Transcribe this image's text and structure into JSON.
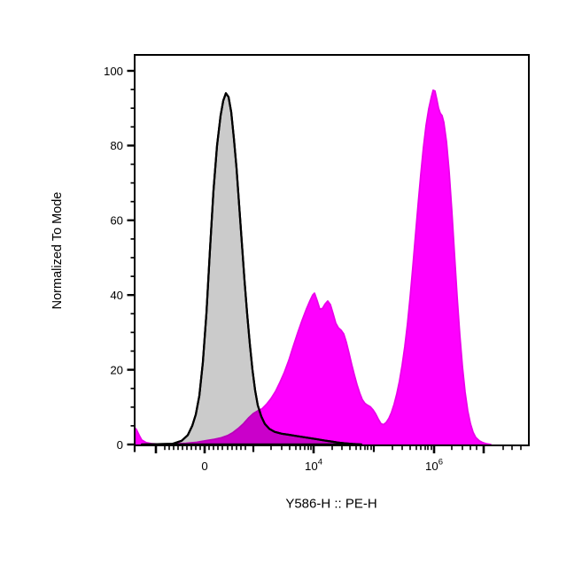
{
  "figure": {
    "background": "#ffffff"
  },
  "chart_data": {
    "type": "area",
    "subtype": "flow-cytometry-histogram-overlay",
    "title": "",
    "xlabel": "Y586-H :: PE-H",
    "ylabel": "Normalized To Mode",
    "legend": "none",
    "grid": false,
    "y_axis": {
      "min": 0,
      "max": 100,
      "major_tick_values": [
        0,
        20,
        40,
        60,
        80,
        100
      ],
      "minor_tick_step": 5
    },
    "x_axis": {
      "scale": "biexponential",
      "tick_labels": [
        {
          "f": 0.1775,
          "text": "0"
        },
        {
          "f": 0.4539,
          "text": "10",
          "sup": "4"
        },
        {
          "f": 0.7596,
          "text": "10",
          "sup": "6"
        }
      ],
      "ticks": [
        {
          "f": 0.0,
          "s": "m"
        },
        {
          "f": 0.0539,
          "s": "l"
        },
        {
          "f": 0.0764,
          "s": "s"
        },
        {
          "f": 0.0876,
          "s": "s"
        },
        {
          "f": 0.0989,
          "s": "s"
        },
        {
          "f": 0.1101,
          "s": "s"
        },
        {
          "f": 0.1213,
          "s": "s"
        },
        {
          "f": 0.1326,
          "s": "s"
        },
        {
          "f": 0.1438,
          "s": "s"
        },
        {
          "f": 0.1551,
          "s": "s"
        },
        {
          "f": 0.1663,
          "s": "s"
        },
        {
          "f": 0.1775,
          "s": "l"
        },
        {
          "f": 0.1888,
          "s": "s"
        },
        {
          "f": 0.2,
          "s": "s"
        },
        {
          "f": 0.2112,
          "s": "s"
        },
        {
          "f": 0.2225,
          "s": "s"
        },
        {
          "f": 0.236,
          "s": "s"
        },
        {
          "f": 0.2472,
          "s": "s"
        },
        {
          "f": 0.2584,
          "s": "s"
        },
        {
          "f": 0.2697,
          "s": "s"
        },
        {
          "f": 0.2809,
          "s": "s"
        },
        {
          "f": 0.3011,
          "s": "m"
        },
        {
          "f": 0.3461,
          "s": "s"
        },
        {
          "f": 0.373,
          "s": "s"
        },
        {
          "f": 0.3933,
          "s": "s"
        },
        {
          "f": 0.409,
          "s": "s"
        },
        {
          "f": 0.4202,
          "s": "s"
        },
        {
          "f": 0.4315,
          "s": "s"
        },
        {
          "f": 0.4404,
          "s": "s"
        },
        {
          "f": 0.4472,
          "s": "s"
        },
        {
          "f": 0.4539,
          "s": "l"
        },
        {
          "f": 0.5011,
          "s": "s"
        },
        {
          "f": 0.5258,
          "s": "s"
        },
        {
          "f": 0.5461,
          "s": "s"
        },
        {
          "f": 0.5618,
          "s": "s"
        },
        {
          "f": 0.573,
          "s": "s"
        },
        {
          "f": 0.5843,
          "s": "s"
        },
        {
          "f": 0.591,
          "s": "s"
        },
        {
          "f": 0.6,
          "s": "s"
        },
        {
          "f": 0.6067,
          "s": "m"
        },
        {
          "f": 0.6539,
          "s": "s"
        },
        {
          "f": 0.6787,
          "s": "s"
        },
        {
          "f": 0.6989,
          "s": "s"
        },
        {
          "f": 0.7146,
          "s": "s"
        },
        {
          "f": 0.7258,
          "s": "s"
        },
        {
          "f": 0.7371,
          "s": "s"
        },
        {
          "f": 0.7438,
          "s": "s"
        },
        {
          "f": 0.7528,
          "s": "s"
        },
        {
          "f": 0.7596,
          "s": "l"
        },
        {
          "f": 0.8045,
          "s": "s"
        },
        {
          "f": 0.8315,
          "s": "s"
        },
        {
          "f": 0.8517,
          "s": "s"
        },
        {
          "f": 0.8674,
          "s": "s"
        },
        {
          "f": 0.8854,
          "s": "l"
        },
        {
          "f": 0.9348,
          "s": "s"
        },
        {
          "f": 0.9573,
          "s": "s"
        },
        {
          "f": 0.9798,
          "s": "s"
        }
      ]
    },
    "series": [
      {
        "name": "gray-control-histogram",
        "fill": "#cbcbcb",
        "stroke": "#000000",
        "stroke_width": 2.2,
        "blend": "normal",
        "points": [
          [
            0.018,
            0
          ],
          [
            0.0966,
            0.2
          ],
          [
            0.1191,
            1
          ],
          [
            0.1348,
            2.5
          ],
          [
            0.1461,
            5
          ],
          [
            0.1551,
            8
          ],
          [
            0.164,
            13
          ],
          [
            0.173,
            22
          ],
          [
            0.182,
            35
          ],
          [
            0.191,
            52
          ],
          [
            0.2,
            68
          ],
          [
            0.209,
            80
          ],
          [
            0.218,
            88
          ],
          [
            0.2247,
            92
          ],
          [
            0.2315,
            94
          ],
          [
            0.2382,
            93
          ],
          [
            0.2449,
            89
          ],
          [
            0.2517,
            82
          ],
          [
            0.2584,
            74
          ],
          [
            0.2652,
            64
          ],
          [
            0.2719,
            54
          ],
          [
            0.2787,
            44
          ],
          [
            0.2854,
            35
          ],
          [
            0.2921,
            27
          ],
          [
            0.2989,
            20
          ],
          [
            0.3056,
            14.5
          ],
          [
            0.3124,
            10.5
          ],
          [
            0.3213,
            7.5
          ],
          [
            0.3303,
            5.5
          ],
          [
            0.3416,
            4.2
          ],
          [
            0.3551,
            3.4
          ],
          [
            0.373,
            2.9
          ],
          [
            0.391,
            2.6
          ],
          [
            0.409,
            2.3
          ],
          [
            0.427,
            2.0
          ],
          [
            0.4449,
            1.7
          ],
          [
            0.4629,
            1.4
          ],
          [
            0.4809,
            1.1
          ],
          [
            0.4989,
            0.8
          ],
          [
            0.5169,
            0.5
          ],
          [
            0.5348,
            0.3
          ],
          [
            0.5528,
            0.15
          ],
          [
            0.5753,
            0
          ]
        ]
      },
      {
        "name": "magenta-stained-histogram",
        "fill": "#fe00fe",
        "stroke": "#ea00ea",
        "stroke_width": 1.8,
        "blend": "multiply",
        "points": [
          [
            0.0,
            4.5
          ],
          [
            0.0045,
            4
          ],
          [
            0.0112,
            2.5
          ],
          [
            0.018,
            1.2
          ],
          [
            0.0292,
            0.5
          ],
          [
            0.0449,
            0.2
          ],
          [
            0.0674,
            0.1
          ],
          [
            0.0966,
            0.15
          ],
          [
            0.1303,
            0.3
          ],
          [
            0.1573,
            0.6
          ],
          [
            0.1798,
            1
          ],
          [
            0.2022,
            1.4
          ],
          [
            0.2202,
            1.8
          ],
          [
            0.236,
            2.4
          ],
          [
            0.2494,
            3.2
          ],
          [
            0.2629,
            4.3
          ],
          [
            0.2764,
            5.6
          ],
          [
            0.2899,
            7.2
          ],
          [
            0.3011,
            8.3
          ],
          [
            0.3124,
            9
          ],
          [
            0.3236,
            9.6
          ],
          [
            0.3348,
            10.8
          ],
          [
            0.3461,
            12.3
          ],
          [
            0.3573,
            14.2
          ],
          [
            0.3685,
            16.6
          ],
          [
            0.3798,
            19.3
          ],
          [
            0.391,
            22.5
          ],
          [
            0.4022,
            26.2
          ],
          [
            0.4135,
            29.8
          ],
          [
            0.4247,
            33.2
          ],
          [
            0.436,
            36.3
          ],
          [
            0.4449,
            38.5
          ],
          [
            0.4517,
            40
          ],
          [
            0.4562,
            40.5
          ],
          [
            0.4629,
            38.5
          ],
          [
            0.4697,
            36.2
          ],
          [
            0.4764,
            36.4
          ],
          [
            0.4831,
            37.6
          ],
          [
            0.4899,
            38.4
          ],
          [
            0.4966,
            37.4
          ],
          [
            0.5034,
            35
          ],
          [
            0.5101,
            32.5
          ],
          [
            0.5169,
            31.2
          ],
          [
            0.5236,
            30.6
          ],
          [
            0.5303,
            29.6
          ],
          [
            0.5371,
            27.3
          ],
          [
            0.5438,
            24.4
          ],
          [
            0.5506,
            21.4
          ],
          [
            0.5573,
            18.6
          ],
          [
            0.564,
            16
          ],
          [
            0.5708,
            13.8
          ],
          [
            0.5775,
            12
          ],
          [
            0.5843,
            11
          ],
          [
            0.591,
            10.5
          ],
          [
            0.5978,
            10.1
          ],
          [
            0.6045,
            9.3
          ],
          [
            0.6112,
            8.2
          ],
          [
            0.618,
            6.8
          ],
          [
            0.6247,
            5.6
          ],
          [
            0.6315,
            5.3
          ],
          [
            0.6382,
            5.9
          ],
          [
            0.6449,
            7
          ],
          [
            0.6517,
            8.6
          ],
          [
            0.6584,
            10.8
          ],
          [
            0.6652,
            13.6
          ],
          [
            0.6719,
            17
          ],
          [
            0.6787,
            21.2
          ],
          [
            0.6854,
            26.2
          ],
          [
            0.6921,
            32.2
          ],
          [
            0.6989,
            39.4
          ],
          [
            0.7056,
            47.4
          ],
          [
            0.7124,
            55.8
          ],
          [
            0.7191,
            64.2
          ],
          [
            0.7258,
            72.2
          ],
          [
            0.7326,
            79.4
          ],
          [
            0.7393,
            85.4
          ],
          [
            0.7461,
            89.8
          ],
          [
            0.7528,
            93
          ],
          [
            0.7573,
            94.8
          ],
          [
            0.7618,
            94.6
          ],
          [
            0.7663,
            92.4
          ],
          [
            0.7708,
            90
          ],
          [
            0.7753,
            88.6
          ],
          [
            0.7798,
            88
          ],
          [
            0.7843,
            86.2
          ],
          [
            0.791,
            81
          ],
          [
            0.7978,
            73
          ],
          [
            0.8045,
            62.6
          ],
          [
            0.8112,
            51
          ],
          [
            0.818,
            39.6
          ],
          [
            0.8247,
            29.4
          ],
          [
            0.8315,
            20.8
          ],
          [
            0.8382,
            14
          ],
          [
            0.8449,
            9
          ],
          [
            0.8517,
            5.6
          ],
          [
            0.8584,
            3.3
          ],
          [
            0.8652,
            1.9
          ],
          [
            0.8742,
            1
          ],
          [
            0.8831,
            0.5
          ],
          [
            0.8921,
            0.2
          ],
          [
            0.9034,
            0
          ]
        ]
      }
    ],
    "overlap_color": "#cb00cb",
    "axis_color": "#000000"
  }
}
